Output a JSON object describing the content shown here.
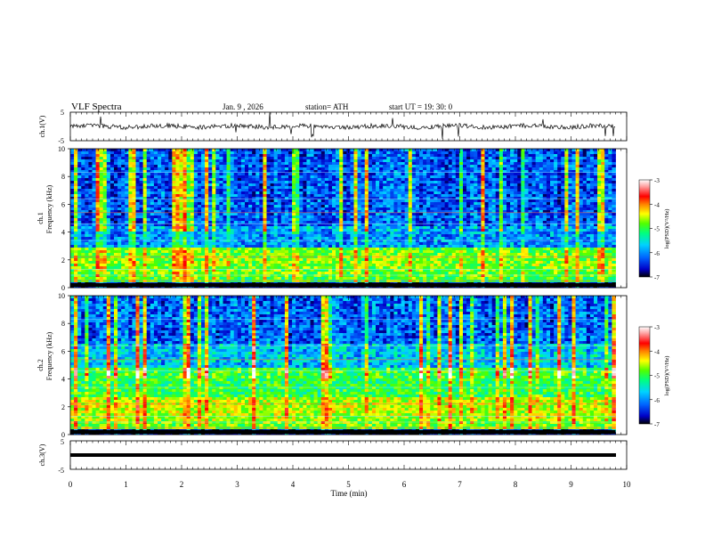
{
  "header": {
    "title": "VLF  Spectra",
    "date": "Jan.  9   , 2026",
    "station": "station= ATH",
    "start": "start  UT  =    19: 30: 0"
  },
  "chart_data": {
    "type": "heatmap",
    "panels": [
      {
        "id": "ch1-waveform",
        "type": "line",
        "ylabel": "ch.1(V)",
        "ylim": [
          -5,
          5
        ],
        "yticks": [
          "5",
          "-5"
        ],
        "trace": "noisy waveform near 0 V with sharp spikes"
      },
      {
        "id": "ch1-spectrogram",
        "type": "heatmap",
        "ylabel_line1": "ch.1",
        "ylabel_line2": "Frequency (kHz)",
        "ylim": [
          0,
          10
        ],
        "yticks": [
          "0",
          "2",
          "4",
          "6",
          "8",
          "10"
        ],
        "description": "broadband spectrogram, strongest power below 3 kHz, frequent vertical sferic streaks"
      },
      {
        "id": "ch2-spectrogram",
        "type": "heatmap",
        "ylabel_line1": "ch.2",
        "ylabel_line2": "Frequency (kHz)",
        "ylim": [
          0,
          10
        ],
        "yticks": [
          "0",
          "2",
          "4",
          "6",
          "8",
          "10"
        ],
        "description": "broadband spectrogram, strong power below 4 kHz, frequent vertical sferic streaks"
      },
      {
        "id": "ch3-waveform",
        "type": "line",
        "ylabel": "ch.3(V)",
        "ylim": [
          -5,
          5
        ],
        "yticks": [
          "5",
          "-5"
        ],
        "trace": "flat line near -1 V"
      }
    ],
    "xlabel": "Time  (min)",
    "xlim": [
      0,
      10
    ],
    "xticks": [
      "0",
      "1",
      "2",
      "3",
      "4",
      "5",
      "6",
      "7",
      "8",
      "9",
      "10"
    ],
    "data_extent_min": 9.8,
    "colorbar": {
      "label": "log(PSD)(V²/Hz)",
      "range": [
        -7,
        -3
      ],
      "ticks": [
        "-3",
        "-4",
        "-5",
        "-6",
        "-7"
      ],
      "colors": [
        "#000000",
        "#0000c8",
        "#0064ff",
        "#00d2ff",
        "#00ff80",
        "#50ff00",
        "#ffff00",
        "#ff8000",
        "#ff0000",
        "#ff9c9c",
        "#ffffff"
      ]
    }
  }
}
